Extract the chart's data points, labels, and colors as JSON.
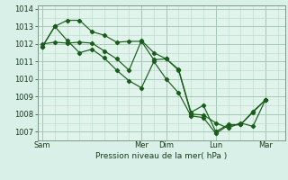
{
  "background_color": "#d8f0e8",
  "plot_bg_color": "#e0f4ec",
  "grid_color_major": "#a8c8b8",
  "grid_color_minor": "#c0dcd0",
  "line_color": "#1a5c1a",
  "title": "Pression niveau de la mer( hPa )",
  "ylim": [
    1006.5,
    1014.2
  ],
  "yticks": [
    1007,
    1008,
    1009,
    1010,
    1011,
    1012,
    1013,
    1014
  ],
  "x_day_labels": [
    "Sam",
    "Mer",
    "Dim",
    "Lun",
    "Mar"
  ],
  "x_day_positions": [
    0.0,
    4.0,
    5.0,
    7.0,
    9.0
  ],
  "series1": [
    [
      0.0,
      1012.0
    ],
    [
      0.5,
      1012.1
    ],
    [
      1.0,
      1012.05
    ],
    [
      1.5,
      1012.1
    ],
    [
      2.0,
      1012.05
    ],
    [
      2.5,
      1011.6
    ],
    [
      3.0,
      1011.15
    ],
    [
      3.5,
      1010.5
    ],
    [
      4.0,
      1012.2
    ],
    [
      4.5,
      1011.5
    ],
    [
      5.0,
      1011.15
    ],
    [
      5.5,
      1010.5
    ],
    [
      6.0,
      1008.0
    ],
    [
      6.5,
      1007.95
    ],
    [
      7.0,
      1007.5
    ],
    [
      7.5,
      1007.2
    ],
    [
      8.0,
      1007.5
    ],
    [
      8.5,
      1007.3
    ],
    [
      9.0,
      1008.8
    ]
  ],
  "series2": [
    [
      0.0,
      1011.85
    ],
    [
      0.5,
      1013.0
    ],
    [
      1.0,
      1013.35
    ],
    [
      1.5,
      1013.35
    ],
    [
      2.0,
      1012.7
    ],
    [
      2.5,
      1012.5
    ],
    [
      3.0,
      1012.1
    ],
    [
      3.5,
      1012.15
    ],
    [
      4.0,
      1012.15
    ],
    [
      4.5,
      1011.1
    ],
    [
      5.0,
      1011.15
    ],
    [
      5.5,
      1010.55
    ],
    [
      6.0,
      1008.1
    ],
    [
      6.5,
      1008.5
    ],
    [
      7.0,
      1007.0
    ],
    [
      7.5,
      1007.4
    ],
    [
      8.0,
      1007.4
    ],
    [
      8.5,
      1008.1
    ],
    [
      9.0,
      1008.8
    ]
  ],
  "series3": [
    [
      0.0,
      1011.85
    ],
    [
      0.5,
      1013.0
    ],
    [
      1.0,
      1012.2
    ],
    [
      1.5,
      1011.5
    ],
    [
      2.0,
      1011.7
    ],
    [
      2.5,
      1011.2
    ],
    [
      3.0,
      1010.5
    ],
    [
      3.5,
      1009.9
    ],
    [
      4.0,
      1009.5
    ],
    [
      4.5,
      1011.0
    ],
    [
      5.0,
      1010.0
    ],
    [
      5.5,
      1009.2
    ],
    [
      6.0,
      1007.9
    ],
    [
      6.5,
      1007.8
    ],
    [
      7.0,
      1006.9
    ],
    [
      7.5,
      1007.35
    ],
    [
      8.0,
      1007.4
    ],
    [
      8.5,
      1008.15
    ],
    [
      9.0,
      1008.8
    ]
  ]
}
